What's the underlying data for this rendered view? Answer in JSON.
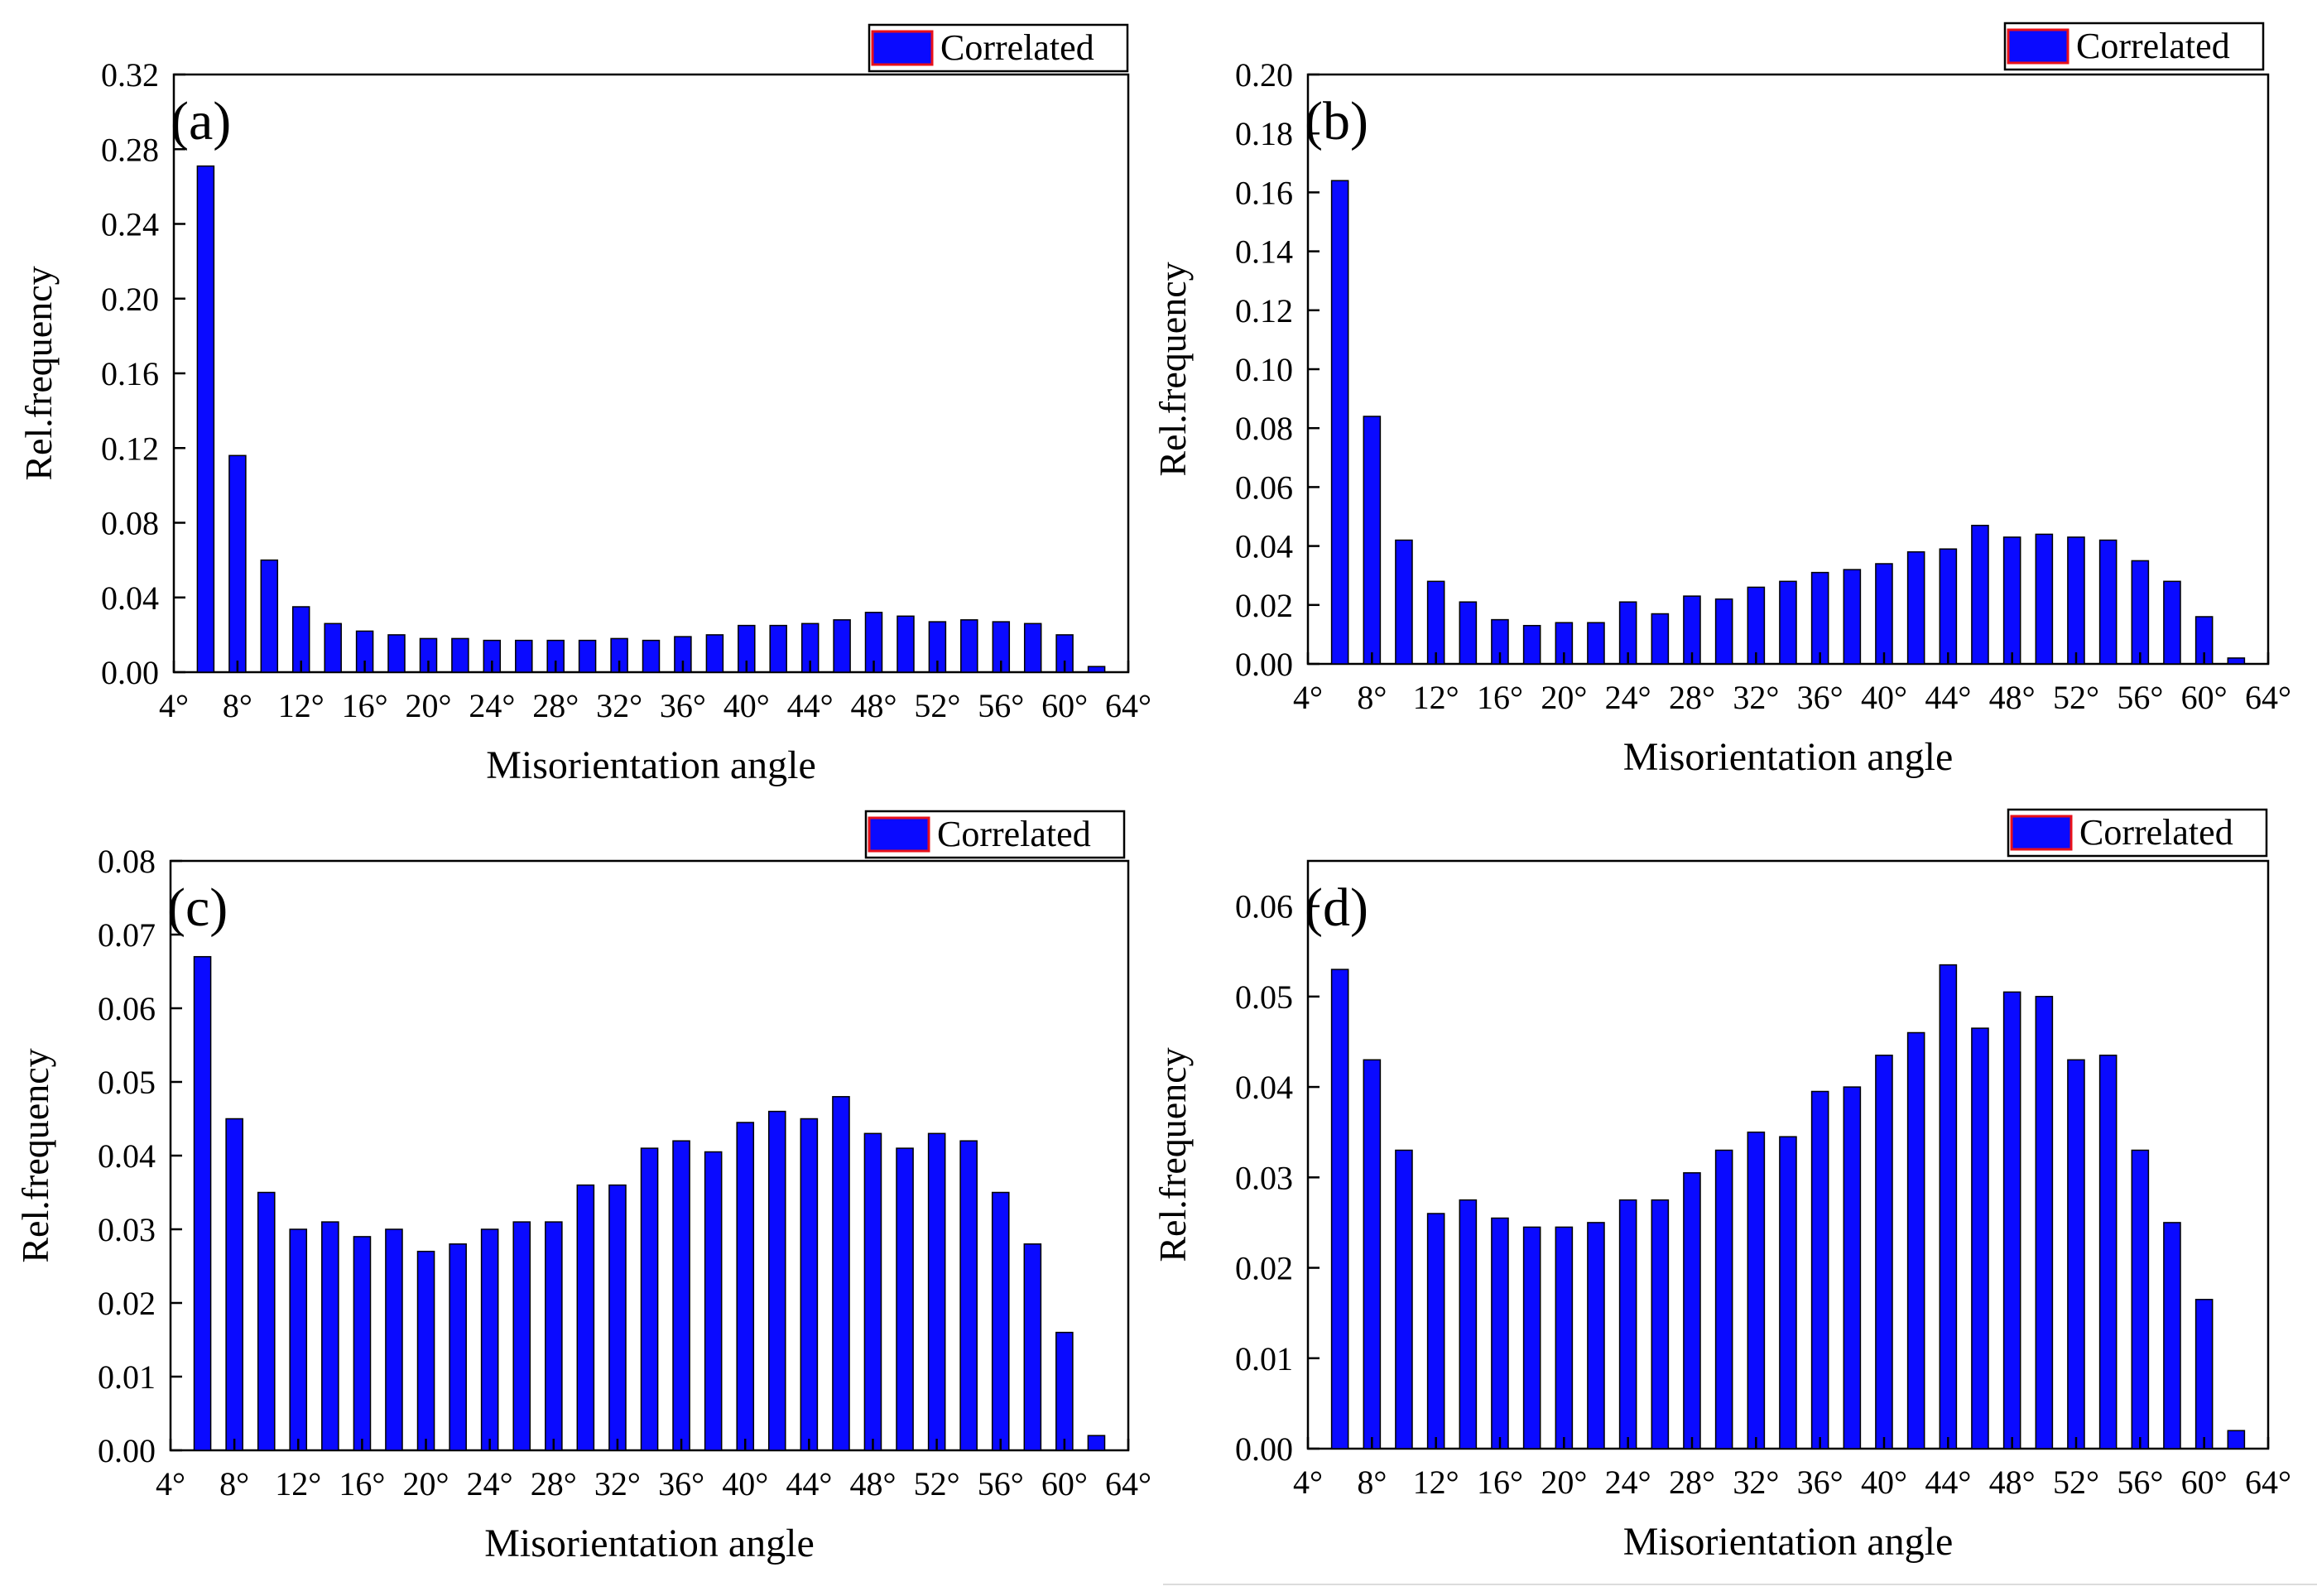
{
  "chart_data": [
    {
      "type": "bar",
      "panel_label": "(a)",
      "legend": "Correlated",
      "xlabel": "Misorientation angle",
      "ylabel": "Rel.frequency",
      "xlim": [
        4,
        64
      ],
      "ylim": [
        0,
        0.32
      ],
      "x_ticks": [
        "4°",
        "8°",
        "12°",
        "16°",
        "20°",
        "24°",
        "28°",
        "32°",
        "36°",
        "40°",
        "44°",
        "48°",
        "52°",
        "56°",
        "60°",
        "64°"
      ],
      "y_ticks": [
        "0.00",
        "0.04",
        "0.08",
        "0.12",
        "0.16",
        "0.20",
        "0.24",
        "0.28",
        "0.32"
      ],
      "x": [
        6,
        8,
        10,
        12,
        14,
        16,
        18,
        20,
        22,
        24,
        26,
        28,
        30,
        32,
        34,
        36,
        38,
        40,
        42,
        44,
        46,
        48,
        50,
        52,
        54,
        56,
        58,
        60,
        62
      ],
      "values": [
        0.271,
        0.116,
        0.06,
        0.035,
        0.026,
        0.022,
        0.02,
        0.018,
        0.018,
        0.017,
        0.017,
        0.017,
        0.017,
        0.018,
        0.017,
        0.019,
        0.02,
        0.025,
        0.025,
        0.026,
        0.028,
        0.032,
        0.03,
        0.027,
        0.028,
        0.027,
        0.026,
        0.02,
        0.003
      ]
    },
    {
      "type": "bar",
      "panel_label": "(b)",
      "legend": "Correlated",
      "xlabel": "Misorientation angle",
      "ylabel": "Rel.frequency",
      "xlim": [
        4,
        64
      ],
      "ylim": [
        0,
        0.2
      ],
      "x_ticks": [
        "4°",
        "8°",
        "12°",
        "16°",
        "20°",
        "24°",
        "28°",
        "32°",
        "36°",
        "40°",
        "44°",
        "48°",
        "52°",
        "56°",
        "60°",
        "64°"
      ],
      "y_ticks": [
        "0.00",
        "0.02",
        "0.04",
        "0.06",
        "0.08",
        "0.10",
        "0.12",
        "0.14",
        "0.16",
        "0.18",
        "0.20"
      ],
      "x": [
        6,
        8,
        10,
        12,
        14,
        16,
        18,
        20,
        22,
        24,
        26,
        28,
        30,
        32,
        34,
        36,
        38,
        40,
        42,
        44,
        46,
        48,
        50,
        52,
        54,
        56,
        58,
        60,
        62
      ],
      "values": [
        0.164,
        0.084,
        0.042,
        0.028,
        0.021,
        0.015,
        0.013,
        0.014,
        0.014,
        0.021,
        0.017,
        0.023,
        0.022,
        0.026,
        0.028,
        0.031,
        0.032,
        0.034,
        0.038,
        0.039,
        0.047,
        0.043,
        0.044,
        0.043,
        0.042,
        0.035,
        0.028,
        0.016,
        0.002
      ]
    },
    {
      "type": "bar",
      "panel_label": "(c)",
      "legend": "Correlated",
      "xlabel": "Misorientation angle",
      "ylabel": "Rel.frequency",
      "xlim": [
        4,
        64
      ],
      "ylim": [
        0,
        0.08
      ],
      "x_ticks": [
        "4°",
        "8°",
        "12°",
        "16°",
        "20°",
        "24°",
        "28°",
        "32°",
        "36°",
        "40°",
        "44°",
        "48°",
        "52°",
        "56°",
        "60°",
        "64°"
      ],
      "y_ticks": [
        "0.00",
        "0.01",
        "0.02",
        "0.03",
        "0.04",
        "0.05",
        "0.06",
        "0.07",
        "0.08"
      ],
      "x": [
        6,
        8,
        10,
        12,
        14,
        16,
        18,
        20,
        22,
        24,
        26,
        28,
        30,
        32,
        34,
        36,
        38,
        40,
        42,
        44,
        46,
        48,
        50,
        52,
        54,
        56,
        58,
        60,
        62
      ],
      "values": [
        0.067,
        0.045,
        0.035,
        0.03,
        0.031,
        0.029,
        0.03,
        0.027,
        0.028,
        0.03,
        0.031,
        0.031,
        0.036,
        0.036,
        0.041,
        0.042,
        0.0405,
        0.0445,
        0.046,
        0.045,
        0.048,
        0.043,
        0.041,
        0.043,
        0.042,
        0.035,
        0.028,
        0.016,
        0.002
      ]
    },
    {
      "type": "bar",
      "panel_label": "(d)",
      "legend": "Correlated",
      "xlabel": "Misorientation angle",
      "ylabel": "Rel.frequency",
      "xlim": [
        4,
        64
      ],
      "ylim": [
        0,
        0.065
      ],
      "x_ticks": [
        "4°",
        "8°",
        "12°",
        "16°",
        "20°",
        "24°",
        "28°",
        "32°",
        "36°",
        "40°",
        "44°",
        "48°",
        "52°",
        "56°",
        "60°",
        "64°"
      ],
      "y_ticks": [
        "0.00",
        "0.01",
        "0.02",
        "0.03",
        "0.04",
        "0.05",
        "0.06"
      ],
      "x": [
        6,
        8,
        10,
        12,
        14,
        16,
        18,
        20,
        22,
        24,
        26,
        28,
        30,
        32,
        34,
        36,
        38,
        40,
        42,
        44,
        46,
        48,
        50,
        52,
        54,
        56,
        58,
        60,
        62
      ],
      "values": [
        0.053,
        0.043,
        0.033,
        0.026,
        0.0275,
        0.0255,
        0.0245,
        0.0245,
        0.025,
        0.0275,
        0.0275,
        0.0305,
        0.033,
        0.035,
        0.0345,
        0.0395,
        0.04,
        0.0435,
        0.046,
        0.0535,
        0.0465,
        0.0505,
        0.05,
        0.043,
        0.0435,
        0.033,
        0.025,
        0.0165,
        0.002
      ]
    }
  ],
  "colors": {
    "bar_fill": "#0a0aff",
    "bar_stroke": "#000000",
    "legend_accent": "#e8101a"
  }
}
